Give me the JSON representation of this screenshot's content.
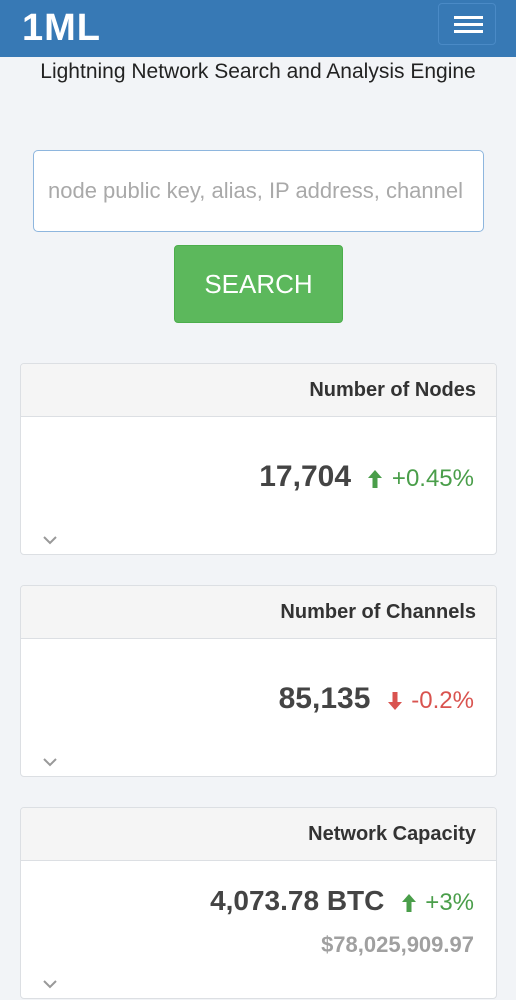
{
  "header": {
    "logo_text": "1ML",
    "menu_icon": "hamburger-icon",
    "brand_color": "#3779b5"
  },
  "tagline": "Lightning Network Search and Analysis Engine",
  "search": {
    "placeholder": "node public key, alias, IP address, channel",
    "value": "",
    "button_label": "SEARCH",
    "button_color": "#5cb85c"
  },
  "cards": [
    {
      "title": "Number of Nodes",
      "value": "17,704",
      "change": "+0.45%",
      "trend": "up"
    },
    {
      "title": "Number of Channels",
      "value": "85,135",
      "change": "-0.2%",
      "trend": "down"
    },
    {
      "title": "Network Capacity",
      "value": "4,073.78 BTC",
      "change": "+3%",
      "trend": "up",
      "usd_value": "$78,025,909.97"
    }
  ],
  "colors": {
    "up": "#4a9e4a",
    "down": "#d9534f"
  }
}
